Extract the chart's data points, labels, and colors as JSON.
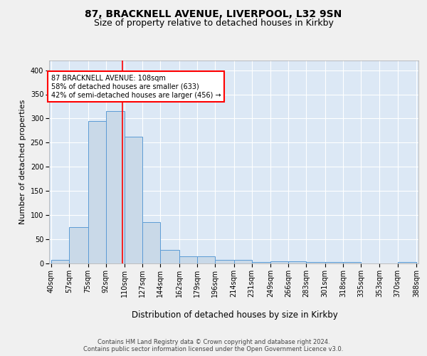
{
  "title": "87, BRACKNELL AVENUE, LIVERPOOL, L32 9SN",
  "subtitle": "Size of property relative to detached houses in Kirkby",
  "xlabel": "Distribution of detached houses by size in Kirkby",
  "ylabel": "Number of detached properties",
  "bin_edges": [
    40,
    57,
    75,
    92,
    110,
    127,
    144,
    162,
    179,
    196,
    214,
    231,
    249,
    266,
    283,
    301,
    318,
    335,
    353,
    370,
    388
  ],
  "bar_heights": [
    7,
    75,
    295,
    315,
    263,
    85,
    28,
    15,
    15,
    7,
    7,
    3,
    5,
    5,
    3,
    3,
    3,
    0,
    0,
    3
  ],
  "bar_color": "#c9d9e8",
  "bar_edge_color": "#5b9bd5",
  "red_line_x": 108,
  "annotation_box_text": "87 BRACKNELL AVENUE: 108sqm\n58% of detached houses are smaller (633)\n42% of semi-detached houses are larger (456) →",
  "ylim": [
    0,
    420
  ],
  "xlim_left": 38,
  "xlim_right": 390,
  "plot_bg_color": "#dce8f5",
  "fig_bg_color": "#f0f0f0",
  "grid_color": "white",
  "footer_text": "Contains HM Land Registry data © Crown copyright and database right 2024.\nContains public sector information licensed under the Open Government Licence v3.0.",
  "title_fontsize": 10,
  "subtitle_fontsize": 9,
  "tick_fontsize": 7,
  "xlabel_fontsize": 8.5,
  "ylabel_fontsize": 8,
  "annot_fontsize": 7,
  "footer_fontsize": 6
}
